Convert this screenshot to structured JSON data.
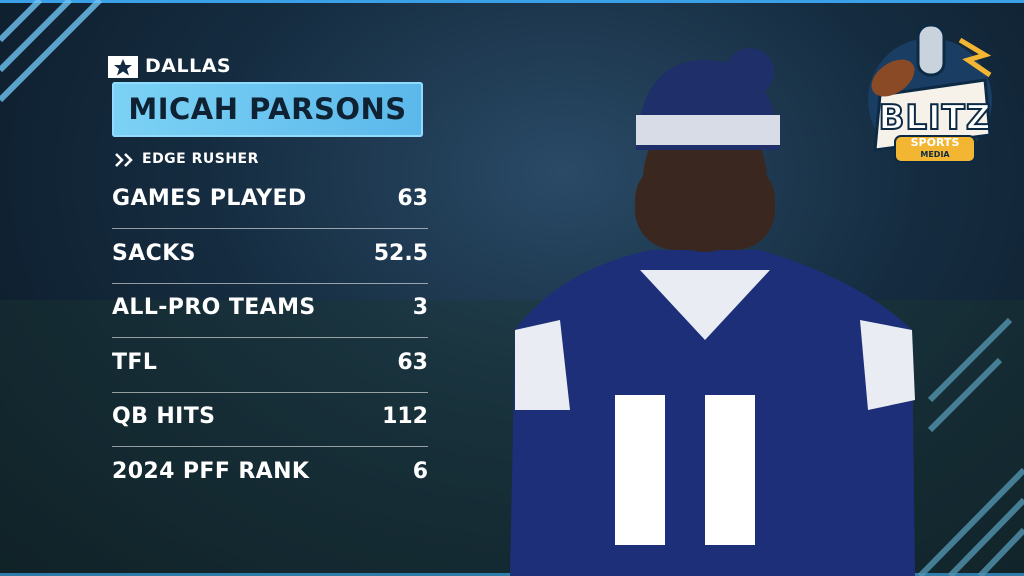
{
  "team": "DALLAS",
  "player": {
    "name": "MICAH PARSONS",
    "position": "EDGE RUSHER"
  },
  "stats": [
    {
      "label": "GAMES PLAYED",
      "value": "63"
    },
    {
      "label": "SACKS",
      "value": "52.5"
    },
    {
      "label": "ALL-PRO TEAMS",
      "value": "3"
    },
    {
      "label": "TFL",
      "value": "63"
    },
    {
      "label": "QB HITS",
      "value": "112"
    },
    {
      "label": "2024 PFF RANK",
      "value": "6"
    }
  ],
  "logo": {
    "title": "BLITZ",
    "line1": "SPORTS",
    "line2": "MEDIA"
  }
}
